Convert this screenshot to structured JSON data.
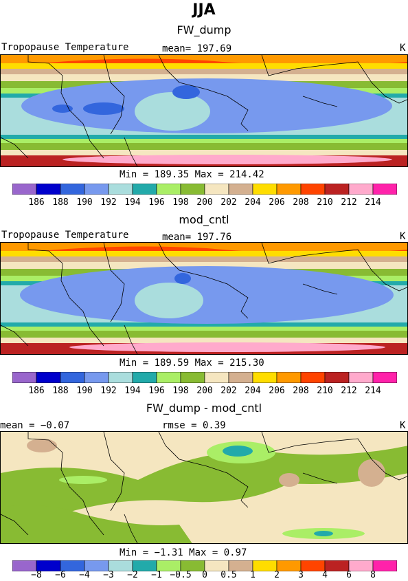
{
  "page": {
    "title": "JJA"
  },
  "chart_data": [
    {
      "type": "heatmap",
      "title": "FW_dump",
      "field_label": "Tropopause Temperature",
      "stat_text": "mean= 197.69",
      "units": "K",
      "min_max_text": "Min = 189.35 Max = 214.42",
      "min": 189.35,
      "max": 214.42,
      "mean": 197.69,
      "colorbar_ticks": [
        "186",
        "188",
        "190",
        "192",
        "194",
        "196",
        "198",
        "200",
        "202",
        "204",
        "206",
        "208",
        "210",
        "212",
        "214"
      ],
      "colors": [
        "#9966cc",
        "#0000cc",
        "#3366dd",
        "#7799ee",
        "#aadddd",
        "#22aaaa",
        "#aaee66",
        "#88bb33",
        "#f5e6c0",
        "#d4b090",
        "#ffdd00",
        "#ff9900",
        "#ff4400",
        "#bb2222",
        "#ffaacc",
        "#ff22aa"
      ]
    },
    {
      "type": "heatmap",
      "title": "mod_cntl",
      "field_label": "Tropopause Temperature",
      "stat_text": "mean= 197.76",
      "units": "K",
      "min_max_text": "Min = 189.59 Max = 215.30",
      "min": 189.59,
      "max": 215.3,
      "mean": 197.76,
      "colorbar_ticks": [
        "186",
        "188",
        "190",
        "192",
        "194",
        "196",
        "198",
        "200",
        "202",
        "204",
        "206",
        "208",
        "210",
        "212",
        "214"
      ],
      "colors": [
        "#9966cc",
        "#0000cc",
        "#3366dd",
        "#7799ee",
        "#aadddd",
        "#22aaaa",
        "#aaee66",
        "#88bb33",
        "#f5e6c0",
        "#d4b090",
        "#ffdd00",
        "#ff9900",
        "#ff4400",
        "#bb2222",
        "#ffaacc",
        "#ff22aa"
      ]
    },
    {
      "type": "heatmap",
      "title": "FW_dump - mod_cntl",
      "field_label": "mean = −0.07",
      "stat_text": "rmse = 0.39",
      "units": "K",
      "min_max_text": "Min = −1.31 Max = 0.97",
      "min": -1.31,
      "max": 0.97,
      "mean": -0.07,
      "rmse": 0.39,
      "colorbar_ticks": [
        "−8",
        "−6",
        "−4",
        "−3",
        "−2",
        "−1",
        "−0.5",
        "0",
        "0.5",
        "1",
        "2",
        "3",
        "4",
        "6",
        "8"
      ],
      "colors": [
        "#9966cc",
        "#0000cc",
        "#3366dd",
        "#7799ee",
        "#aadddd",
        "#22aaaa",
        "#aaee66",
        "#88bb33",
        "#f5e6c0",
        "#d4b090",
        "#ffdd00",
        "#ff9900",
        "#ff4400",
        "#bb2222",
        "#ffaacc",
        "#ff22aa"
      ]
    }
  ]
}
